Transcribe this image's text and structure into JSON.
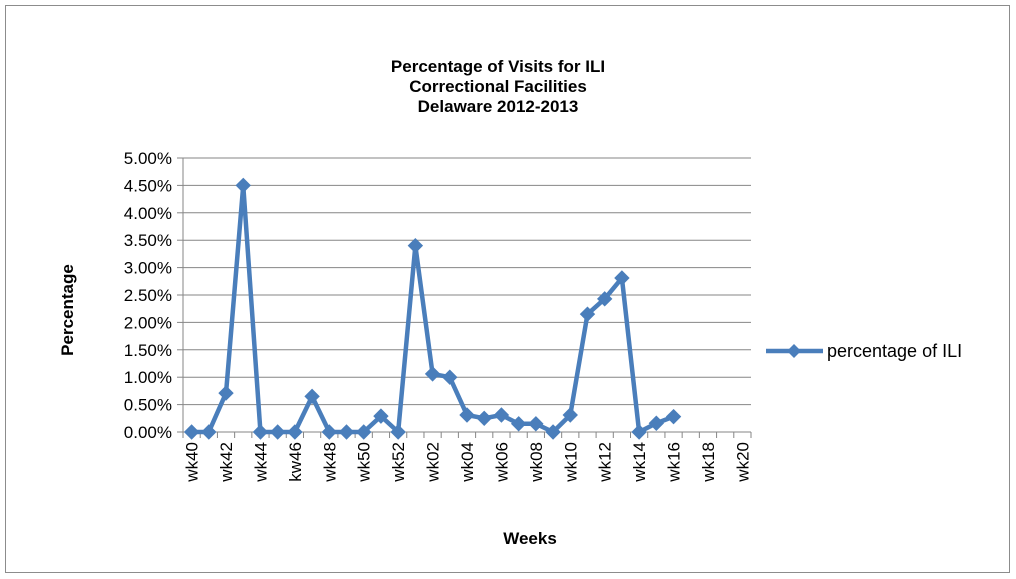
{
  "chart_data": {
    "type": "line",
    "title": [
      "Percentage of Visits for ILI",
      "Correctional Facilities",
      "Delaware 2012-2013"
    ],
    "xlabel": "Weeks",
    "ylabel": "Percentage",
    "ylim": [
      0,
      0.05
    ],
    "ytick_step": 0.005,
    "ytick_labels": [
      "0.00%",
      "0.50%",
      "1.00%",
      "1.50%",
      "2.00%",
      "2.50%",
      "3.00%",
      "3.50%",
      "4.00%",
      "4.50%",
      "5.00%"
    ],
    "grid": true,
    "legend_position": "right",
    "color": "#4a7ebb",
    "categories": [
      "wk40",
      "wk41",
      "wk42",
      "wk43",
      "wk44",
      "wk45",
      "kw46",
      "wk47",
      "wk48",
      "wk49",
      "wk50",
      "wk51",
      "wk52",
      "wk01",
      "wk02",
      "wk03",
      "wk04",
      "wk05",
      "wk06",
      "wk07",
      "wk08",
      "wk09",
      "wk10",
      "wk11",
      "wk12",
      "wk13",
      "wk14",
      "wk15",
      "wk16",
      "wk17",
      "wk18",
      "wk19",
      "wk20"
    ],
    "visible_tick_labels": [
      "wk40",
      "wk42",
      "wk44",
      "kw46",
      "wk48",
      "wk50",
      "wk52",
      "wk02",
      "wk04",
      "wk06",
      "wk08",
      "wk10",
      "wk12",
      "wk14",
      "wk16",
      "wk18",
      "wk20"
    ],
    "series": [
      {
        "name": "percentage of ILI",
        "values": [
          0.0,
          0.0,
          0.0071,
          0.045,
          0.0,
          0.0,
          0.0,
          0.0065,
          0.0,
          0.0,
          0.0,
          0.0029,
          0.0,
          0.034,
          0.0106,
          0.01,
          0.0031,
          0.0025,
          0.0031,
          0.0015,
          0.0015,
          0.0,
          0.0031,
          0.0215,
          0.0243,
          0.0281,
          0.0,
          0.0016,
          0.0028,
          null,
          null,
          null,
          null
        ]
      }
    ]
  }
}
